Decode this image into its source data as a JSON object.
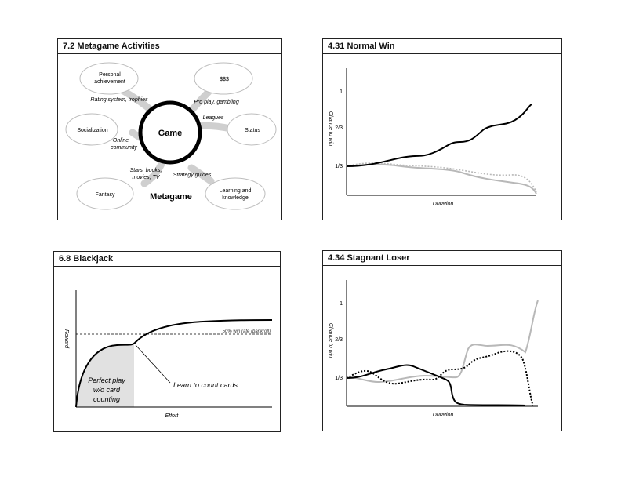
{
  "panels": {
    "metagame": {
      "title": "7.2 Metagame Activities",
      "center": "Game",
      "footer": "Metagame",
      "bubbles": {
        "personal_1": "Personal",
        "personal_2": "achievement",
        "money": "$$$",
        "socialization": "Socialization",
        "status": "Status",
        "fantasy": "Fantasy",
        "learning_1": "Learning and",
        "learning_2": "knowledge"
      },
      "links": {
        "rating": "Rating system, trophies",
        "pro_play": "Pro play, gambling",
        "leagues": "Leagues",
        "online_1": "Online",
        "online_2": "community",
        "stars_1": "Stars, books,",
        "stars_2": "movies, TV",
        "strategy": "Strategy guides"
      }
    },
    "normal_win": {
      "title": "4.31 Normal Win",
      "ylabel": "Chance to win",
      "xlabel": "Duration",
      "yticks": [
        "1",
        "2/3",
        "1/3"
      ]
    },
    "blackjack": {
      "title": "6.8 Blackjack",
      "ylabel": "Reward",
      "xlabel": "Effort",
      "threshold": "50% win rate (bankroll)",
      "region_1": "Perfect play",
      "region_2": "w/o card",
      "region_3": "counting",
      "annotation": "Learn to count cards"
    },
    "stagnant_loser": {
      "title": "4.34 Stagnant Loser",
      "ylabel": "Chance to win",
      "xlabel": "Duration",
      "yticks": [
        "1",
        "2/3",
        "1/3"
      ]
    }
  }
}
